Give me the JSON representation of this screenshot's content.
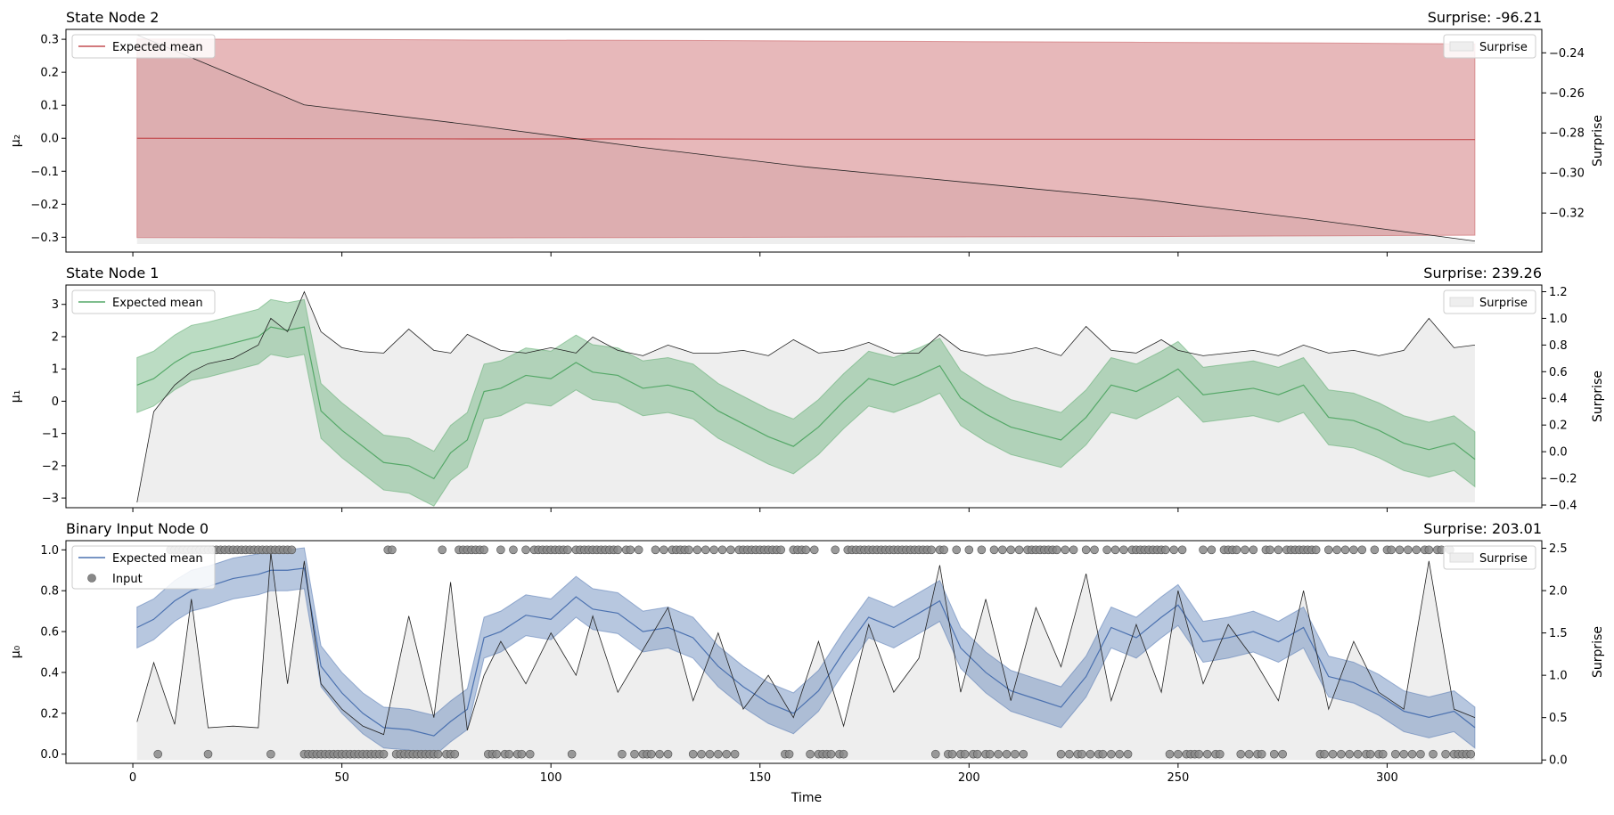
{
  "figure": {
    "xlabel": "Time"
  },
  "colors": {
    "panel0": "#c44e52",
    "panel1": "#55a868",
    "panel2": "#4c72b0",
    "surprise_fill": "#eeeeee",
    "surprise_line": "#222222",
    "input_marker": "#888888"
  },
  "chart_data": [
    {
      "type": "line",
      "title": "State Node 2",
      "surprise_label": "Surprise: -96.21",
      "ylabel": "μ₂",
      "y2label": "Surprise",
      "ylim": [
        -0.345,
        0.33
      ],
      "y2lim": [
        -0.3395,
        -0.2283
      ],
      "yticks": [
        -0.3,
        -0.2,
        -0.1,
        0.0,
        0.1,
        0.2,
        0.3
      ],
      "ytick_labels": [
        "−0.3",
        "−0.2",
        "−0.1",
        "0.0",
        "0.1",
        "0.2",
        "0.3"
      ],
      "y2ticks": [
        -0.32,
        -0.3,
        -0.28,
        -0.26,
        -0.24
      ],
      "y2tick_labels": [
        "−0.32",
        "−0.30",
        "−0.28",
        "−0.26",
        "−0.24"
      ],
      "legend": {
        "left": "Expected mean",
        "right": "Surprise"
      },
      "x": [
        1,
        41,
        81,
        121,
        161,
        201,
        241,
        281,
        321
      ],
      "mean": [
        0.0,
        -0.001,
        -0.002,
        -0.002,
        -0.003,
        -0.003,
        -0.003,
        -0.004,
        -0.004
      ],
      "upper": [
        0.301,
        0.3,
        0.298,
        0.297,
        0.295,
        0.293,
        0.291,
        0.289,
        0.286
      ],
      "lower": [
        -0.301,
        -0.302,
        -0.302,
        -0.301,
        -0.3,
        -0.299,
        -0.298,
        -0.296,
        -0.294
      ],
      "surprise": [
        -0.231,
        -0.266,
        -0.276,
        -0.287,
        -0.297,
        -0.305,
        -0.313,
        -0.323,
        -0.334
      ],
      "surprise_base": -0.3355,
      "surprise_baseline": -0.3355
    },
    {
      "type": "line",
      "title": "State Node 1",
      "surprise_label": "Surprise: 239.26",
      "ylabel": "μ₁",
      "y2label": "Surprise",
      "ylim": [
        -3.3,
        3.6
      ],
      "y2lim": [
        -0.42,
        1.25
      ],
      "yticks": [
        -3,
        -2,
        -1,
        0,
        1,
        2,
        3
      ],
      "ytick_labels": [
        "−3",
        "−2",
        "−1",
        "0",
        "1",
        "2",
        "3"
      ],
      "y2ticks": [
        -0.4,
        -0.2,
        0.0,
        0.2,
        0.4,
        0.6,
        0.8,
        1.0,
        1.2
      ],
      "y2tick_labels": [
        "−0.4",
        "−0.2",
        "0.0",
        "0.2",
        "0.4",
        "0.6",
        "0.8",
        "1.0",
        "1.2"
      ],
      "legend": {
        "left": "Expected mean",
        "right": "Surprise"
      },
      "x": [
        1,
        5,
        10,
        14,
        18,
        24,
        30,
        33,
        37,
        41,
        45,
        50,
        55,
        60,
        66,
        72,
        76,
        80,
        84,
        88,
        94,
        100,
        106,
        110,
        116,
        122,
        128,
        134,
        140,
        146,
        152,
        158,
        164,
        170,
        176,
        182,
        188,
        193,
        198,
        204,
        210,
        216,
        222,
        228,
        234,
        240,
        246,
        250,
        256,
        262,
        268,
        274,
        280,
        286,
        292,
        298,
        304,
        310,
        316,
        321
      ],
      "mean": [
        0.5,
        0.7,
        1.2,
        1.5,
        1.6,
        1.8,
        2.0,
        2.3,
        2.2,
        2.3,
        -0.3,
        -0.9,
        -1.4,
        -1.9,
        -2.0,
        -2.4,
        -1.6,
        -1.2,
        0.3,
        0.4,
        0.8,
        0.7,
        1.2,
        0.9,
        0.8,
        0.4,
        0.5,
        0.3,
        -0.3,
        -0.7,
        -1.1,
        -1.4,
        -0.8,
        0.0,
        0.7,
        0.5,
        0.8,
        1.1,
        0.1,
        -0.4,
        -0.8,
        -1.0,
        -1.2,
        -0.5,
        0.5,
        0.3,
        0.7,
        1.0,
        0.2,
        0.3,
        0.4,
        0.2,
        0.5,
        -0.5,
        -0.6,
        -0.9,
        -1.3,
        -1.5,
        -1.3,
        -1.8
      ],
      "band": 0.85,
      "surprise": [
        -0.38,
        0.3,
        0.5,
        0.6,
        0.66,
        0.7,
        0.8,
        1.0,
        0.9,
        1.2,
        0.9,
        0.78,
        0.75,
        0.74,
        0.92,
        0.76,
        0.74,
        0.88,
        0.82,
        0.76,
        0.74,
        0.78,
        0.74,
        0.86,
        0.76,
        0.72,
        0.8,
        0.74,
        0.74,
        0.76,
        0.72,
        0.84,
        0.74,
        0.76,
        0.82,
        0.74,
        0.74,
        0.88,
        0.76,
        0.72,
        0.74,
        0.78,
        0.72,
        0.94,
        0.76,
        0.74,
        0.84,
        0.76,
        0.72,
        0.74,
        0.76,
        0.72,
        0.8,
        0.74,
        0.76,
        0.72,
        0.76,
        1.0,
        0.78,
        0.8
      ],
      "surprise_base": -0.38,
      "surprise_baseline": -0.38
    },
    {
      "type": "line",
      "title": "Binary Input Node 0",
      "surprise_label": "Surprise: 203.01",
      "ylabel": "μ₀",
      "y2label": "Surprise",
      "ylim": [
        -0.045,
        1.045
      ],
      "y2lim": [
        -0.04,
        2.59
      ],
      "yticks": [
        0.0,
        0.2,
        0.4,
        0.6,
        0.8,
        1.0
      ],
      "ytick_labels": [
        "0.0",
        "0.2",
        "0.4",
        "0.6",
        "0.8",
        "1.0"
      ],
      "y2ticks": [
        0.0,
        0.5,
        1.0,
        1.5,
        2.0,
        2.5
      ],
      "y2tick_labels": [
        "0.0",
        "0.5",
        "1.0",
        "1.5",
        "2.0",
        "2.5"
      ],
      "xlim": [
        -16,
        337
      ],
      "xticks": [
        0,
        50,
        100,
        150,
        200,
        250,
        300
      ],
      "xtick_labels": [
        "0",
        "50",
        "100",
        "150",
        "200",
        "250",
        "300"
      ],
      "legend": {
        "left": "Expected mean",
        "left2": "Input",
        "right": "Surprise"
      },
      "x": [
        1,
        5,
        10,
        14,
        18,
        24,
        30,
        33,
        37,
        41,
        45,
        50,
        55,
        60,
        66,
        72,
        76,
        80,
        84,
        88,
        94,
        100,
        106,
        110,
        116,
        122,
        128,
        134,
        140,
        146,
        152,
        158,
        164,
        170,
        176,
        182,
        188,
        193,
        198,
        204,
        210,
        216,
        222,
        228,
        234,
        240,
        246,
        250,
        256,
        262,
        268,
        274,
        280,
        286,
        292,
        298,
        304,
        310,
        316,
        321
      ],
      "mean": [
        0.62,
        0.66,
        0.75,
        0.8,
        0.82,
        0.86,
        0.88,
        0.9,
        0.9,
        0.91,
        0.43,
        0.3,
        0.2,
        0.13,
        0.12,
        0.09,
        0.16,
        0.22,
        0.57,
        0.6,
        0.68,
        0.66,
        0.77,
        0.71,
        0.69,
        0.6,
        0.62,
        0.57,
        0.43,
        0.33,
        0.25,
        0.2,
        0.31,
        0.5,
        0.67,
        0.62,
        0.69,
        0.75,
        0.52,
        0.4,
        0.31,
        0.27,
        0.23,
        0.38,
        0.62,
        0.57,
        0.67,
        0.73,
        0.55,
        0.57,
        0.6,
        0.55,
        0.62,
        0.38,
        0.35,
        0.29,
        0.21,
        0.18,
        0.21,
        0.13
      ],
      "band_half": 0.1,
      "surprise": [
        0.45,
        1.15,
        0.42,
        1.9,
        0.38,
        0.4,
        0.38,
        2.45,
        0.9,
        2.35,
        0.9,
        0.6,
        0.4,
        0.3,
        1.7,
        0.5,
        2.1,
        0.35,
        1.0,
        1.4,
        0.9,
        1.5,
        1.0,
        1.7,
        0.8,
        1.3,
        1.8,
        0.7,
        1.5,
        0.6,
        1.0,
        0.5,
        1.4,
        0.4,
        1.6,
        0.8,
        1.2,
        2.3,
        0.8,
        1.9,
        0.7,
        1.8,
        1.1,
        2.2,
        0.7,
        1.6,
        0.8,
        2.0,
        0.9,
        1.6,
        1.2,
        0.7,
        2.0,
        0.6,
        1.4,
        0.8,
        0.6,
        2.35,
        0.6,
        0.5
      ],
      "surprise_base": 0.0,
      "surprise_baseline": 0.0,
      "input_ones": [
        9,
        10,
        11,
        12,
        13,
        14,
        15,
        16,
        17,
        18,
        19,
        20,
        21,
        22,
        23,
        24,
        25,
        26,
        27,
        28,
        29,
        30,
        31,
        32,
        33,
        34,
        35,
        36,
        37,
        38,
        61,
        62,
        74,
        78,
        79,
        80,
        81,
        82,
        83,
        84,
        88,
        91,
        94,
        96,
        97,
        98,
        99,
        100,
        101,
        102,
        103,
        104,
        106,
        107,
        108,
        109,
        110,
        111,
        112,
        113,
        114,
        115,
        116,
        118,
        119,
        121,
        125,
        127,
        129,
        130,
        131,
        132,
        133,
        135,
        137,
        139,
        141,
        143,
        145,
        146,
        147,
        148,
        149,
        150,
        151,
        152,
        153,
        154,
        155,
        158,
        159,
        160,
        161,
        163,
        168,
        171,
        172,
        173,
        174,
        175,
        176,
        177,
        178,
        179,
        180,
        181,
        182,
        183,
        184,
        185,
        186,
        187,
        188,
        189,
        190,
        191,
        193,
        194,
        197,
        200,
        203,
        206,
        208,
        210,
        212,
        214,
        215,
        216,
        217,
        218,
        219,
        220,
        221,
        223,
        225,
        228,
        230,
        233,
        235,
        237,
        239,
        240,
        241,
        242,
        243,
        244,
        245,
        246,
        247,
        249,
        251,
        256,
        258,
        261,
        262,
        263,
        264,
        266,
        268,
        271,
        272,
        274,
        276,
        277,
        278,
        279,
        280,
        281,
        282,
        283,
        286,
        288,
        290,
        292,
        294,
        297,
        300,
        301,
        303,
        305,
        307,
        309,
        310,
        312,
        313,
        315
      ],
      "input_zeros": [
        6,
        18,
        33,
        41,
        42,
        43,
        44,
        45,
        46,
        47,
        48,
        49,
        50,
        51,
        52,
        53,
        54,
        55,
        56,
        57,
        58,
        59,
        60,
        63,
        64,
        65,
        66,
        67,
        68,
        69,
        70,
        71,
        72,
        73,
        75,
        76,
        77,
        85,
        86,
        87,
        89,
        90,
        92,
        93,
        95,
        105,
        117,
        120,
        122,
        123,
        124,
        126,
        128,
        134,
        136,
        138,
        140,
        142,
        144,
        156,
        157,
        162,
        164,
        165,
        166,
        167,
        169,
        170,
        192,
        195,
        196,
        198,
        199,
        201,
        202,
        204,
        205,
        207,
        209,
        211,
        213,
        222,
        224,
        226,
        227,
        229,
        231,
        232,
        234,
        236,
        238,
        248,
        250,
        252,
        253,
        254,
        255,
        257,
        259,
        260,
        265,
        267,
        269,
        270,
        273,
        275,
        284,
        285,
        287,
        289,
        291,
        293,
        295,
        296,
        298,
        299,
        302,
        304,
        306,
        308,
        311,
        314,
        316,
        317,
        318,
        319,
        320
      ]
    }
  ]
}
